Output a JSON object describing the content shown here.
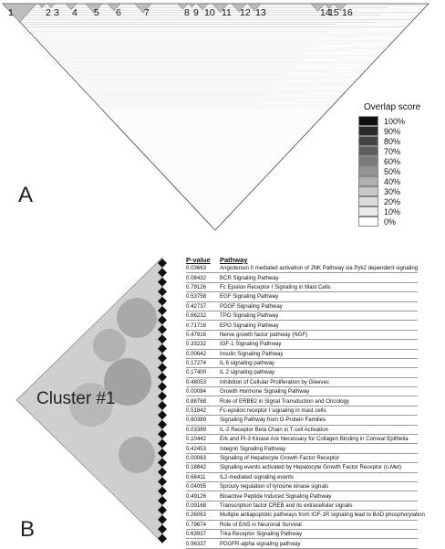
{
  "panel_a": {
    "letter": "A",
    "cluster_numbers": [
      "1",
      "2",
      "3",
      "4",
      "5",
      "6",
      "7",
      "8",
      "9",
      "10",
      "11",
      "12",
      "13",
      "14",
      "15",
      "16"
    ],
    "legend": {
      "title": "Overlap score",
      "levels": [
        {
          "label": "100%",
          "color": "#111111"
        },
        {
          "label": "90%",
          "color": "#2b2b2b"
        },
        {
          "label": "80%",
          "color": "#454545"
        },
        {
          "label": "70%",
          "color": "#5f5f5f"
        },
        {
          "label": "60%",
          "color": "#7a7a7a"
        },
        {
          "label": "50%",
          "color": "#959595"
        },
        {
          "label": "40%",
          "color": "#b0b0b0"
        },
        {
          "label": "30%",
          "color": "#c8c8c8"
        },
        {
          "label": "20%",
          "color": "#dcdcdc"
        },
        {
          "label": "10%",
          "color": "#ececec"
        },
        {
          "label": "0%",
          "color": "#ffffff"
        }
      ]
    }
  },
  "panel_b": {
    "letter": "B",
    "cluster_label": "Cluster #1",
    "table_header": {
      "pvalue": "P-value",
      "pathway": "Pathway"
    },
    "rows": [
      {
        "p": "0.03663",
        "name": "Angiotensin II mediated activation of JNK Pathway via Pyk2 dependent signaling"
      },
      {
        "p": "0.08432",
        "name": "BCR Signaling Pathway"
      },
      {
        "p": "0.79126",
        "name": "Fc Epsilon Receptor I Signaling in Mast Cells"
      },
      {
        "p": "0.53758",
        "name": "EGF Signaling Pathway"
      },
      {
        "p": "0.42737",
        "name": "PDGF Signaling Pathway"
      },
      {
        "p": "0.66232",
        "name": "TPO Signaling Pathway"
      },
      {
        "p": "0.71716",
        "name": "EPO Signaling Pathway"
      },
      {
        "p": "0.47916",
        "name": "Nerve growth factor pathway (NGF)"
      },
      {
        "p": "0.33232",
        "name": "IGF-1 Signaling Pathway"
      },
      {
        "p": "0.00642",
        "name": "Insulin Signaling Pathway"
      },
      {
        "p": "0.17274",
        "name": "IL 6 signaling pathway"
      },
      {
        "p": "0.17400",
        "name": "IL 2 signaling pathway"
      },
      {
        "p": "0.48053",
        "name": "Inhibition of Cellular Proliferation by Gleevec"
      },
      {
        "p": "0.00084",
        "name": "Growth Hormone Signaling Pathway"
      },
      {
        "p": "0.88768",
        "name": "Role of ERBB2 in Signal Transduction and Oncology"
      },
      {
        "p": "0.51842",
        "name": "Fc-epsilon receptor I signaling in mast cells"
      },
      {
        "p": "0.60389",
        "name": "Signaling Pathway from G-Protein Families"
      },
      {
        "p": "0.03389",
        "name": "IL-2 Receptor Beta Chain in T cell Activation"
      },
      {
        "p": "0.10442",
        "name": "Erk and PI-3 Kinase Are Necessary for Collagen Binding in Corneal Epithelia"
      },
      {
        "p": "0.42453",
        "name": "Integrin Signaling Pathway"
      },
      {
        "p": "0.00063",
        "name": "Signaling of Hepatocyte Growth Factor Receptor"
      },
      {
        "p": "0.18842",
        "name": "Signaling events activated by Hepatocyte Growth Factor Receptor (c-Met)"
      },
      {
        "p": "0.68411",
        "name": "IL2-mediated signaling events"
      },
      {
        "p": "0.04095",
        "name": "Sprouty regulation of tyrosine kinase signals"
      },
      {
        "p": "0.49126",
        "name": "Bioactive Peptide Induced Signaling Pathway"
      },
      {
        "p": "0.09168",
        "name": "Transcription factor CREB and its extracellular signals"
      },
      {
        "p": "0.26063",
        "name": "Multiple antiapoptotic pathways from IGF-1R signaling lead to BAD phosphorylation"
      },
      {
        "p": "0.79674",
        "name": "Role of Erk5 in Neuronal Survival"
      },
      {
        "p": "0.63937",
        "name": "Trka Receptor Signaling Pathway"
      },
      {
        "p": "0.96337",
        "name": "PDGFR-alpha signaling pathway"
      }
    ]
  }
}
